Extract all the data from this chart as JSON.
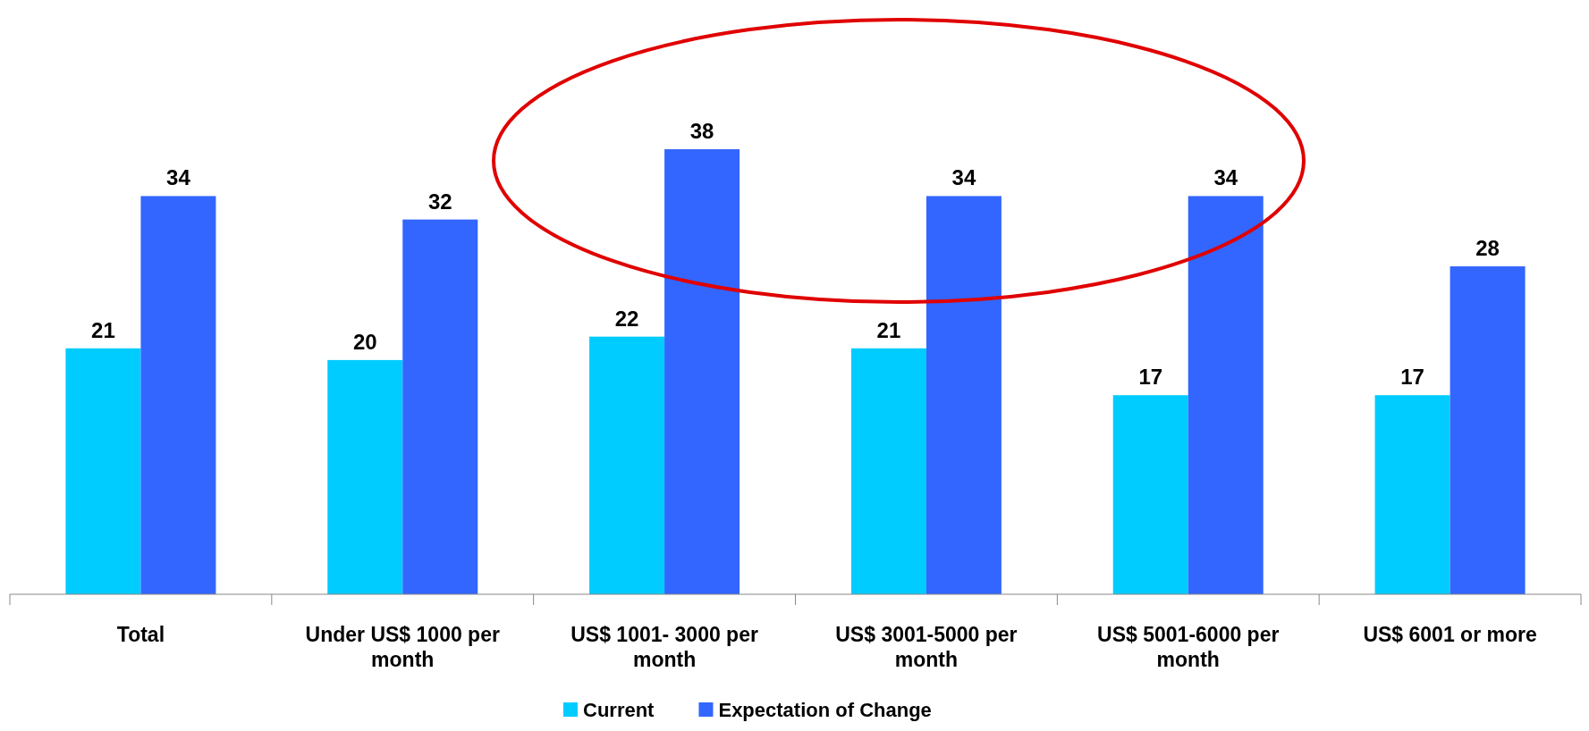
{
  "chart_data": {
    "type": "bar",
    "categories": [
      "Total",
      "Under US$ 1000 per month",
      "US$ 1001- 3000 per month",
      "US$ 3001-5000 per month",
      "US$ 5001-6000 per month",
      "US$ 6001 or more"
    ],
    "series": [
      {
        "name": "Current",
        "color": "#00ccff",
        "values": [
          21,
          20,
          22,
          21,
          17,
          17
        ]
      },
      {
        "name": "Expectation of Change",
        "color": "#3366ff",
        "values": [
          34,
          32,
          38,
          34,
          34,
          28
        ]
      }
    ],
    "data_labels": true,
    "legend": "bottom"
  }
}
